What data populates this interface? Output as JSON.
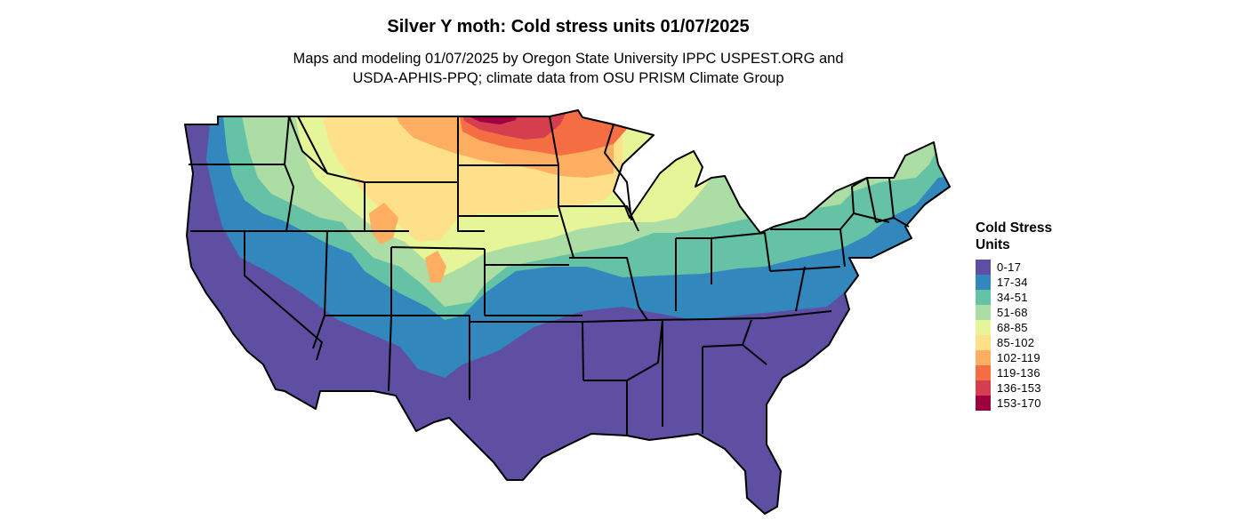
{
  "title": "Silver Y moth: Cold stress units 01/07/2025",
  "subtitle_lines": [
    "Maps and modeling 01/07/2025 by Oregon State University IPPC USPEST.ORG and",
    "USDA-APHIS-PPQ; climate data from OSU PRISM Climate Group"
  ],
  "legend": {
    "title_lines": [
      "Cold Stress",
      "Units"
    ],
    "items": [
      {
        "label": "0-17",
        "color": "#5e4fa2"
      },
      {
        "label": "17-34",
        "color": "#3288bd"
      },
      {
        "label": "34-51",
        "color": "#66c2a5"
      },
      {
        "label": "51-68",
        "color": "#abdda4"
      },
      {
        "label": "68-85",
        "color": "#e6f598"
      },
      {
        "label": "85-102",
        "color": "#fee08b"
      },
      {
        "label": "102-119",
        "color": "#fdae61"
      },
      {
        "label": "119-136",
        "color": "#f46d43"
      },
      {
        "label": "136-153",
        "color": "#d53e4f"
      },
      {
        "label": "153-170",
        "color": "#9e0142"
      }
    ]
  },
  "map": {
    "region": "Contiguous United States",
    "boundary_color": "#000000",
    "zone_levels": [
      "0-17",
      "17-34",
      "34-51",
      "51-68",
      "68-85",
      "85-102",
      "102-119",
      "119-136",
      "136-153",
      "153-170"
    ]
  }
}
